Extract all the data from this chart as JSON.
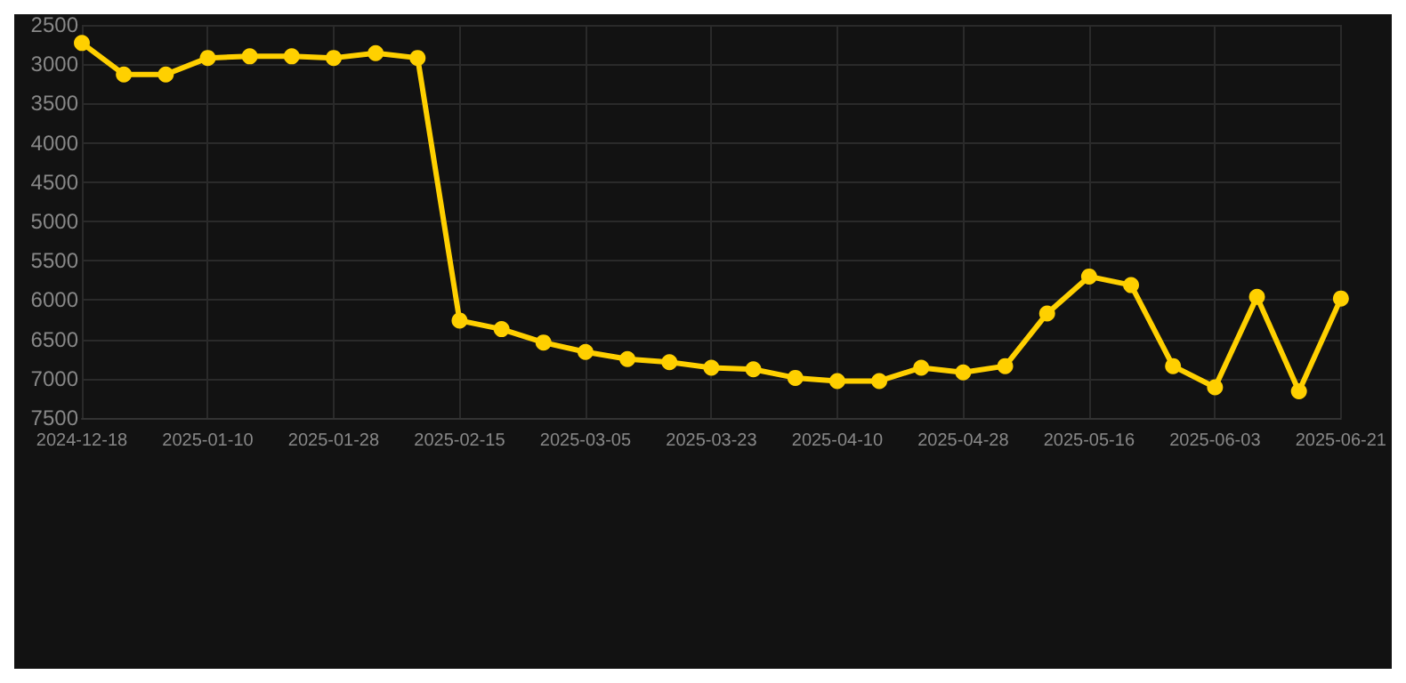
{
  "chart_data": {
    "type": "line",
    "categories": [
      "2024-12-18",
      null,
      null,
      "2025-01-10",
      null,
      null,
      "2025-01-28",
      null,
      null,
      "2025-02-15",
      null,
      null,
      "2025-03-05",
      null,
      null,
      "2025-03-23",
      null,
      null,
      "2025-04-10",
      null,
      null,
      "2025-04-28",
      null,
      null,
      "2025-05-16",
      null,
      null,
      "2025-06-03",
      null,
      null,
      "2025-06-21"
    ],
    "series": [
      {
        "color": "#ffd000",
        "values": [
          2730,
          3130,
          3130,
          2920,
          2900,
          2900,
          2920,
          2860,
          2920,
          6260,
          6370,
          6540,
          6660,
          6750,
          6790,
          6860,
          6880,
          6990,
          7030,
          7030,
          6860,
          6920,
          6840,
          6170,
          5700,
          5810,
          6840,
          7110,
          5960,
          7160,
          5980
        ]
      }
    ],
    "ylim": [
      7500,
      2500
    ],
    "yticks": [
      2500,
      3000,
      3500,
      4000,
      4500,
      5000,
      5500,
      6000,
      6500,
      7000,
      7500
    ],
    "grid": true,
    "marker": "circle",
    "line_style": "solid"
  }
}
